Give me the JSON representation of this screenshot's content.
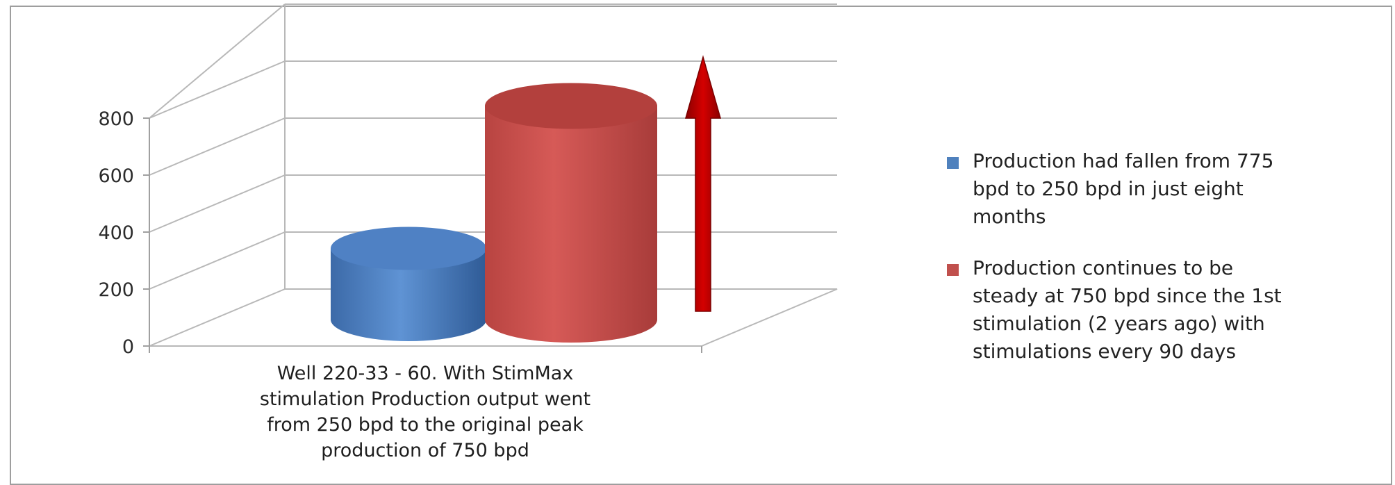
{
  "chart_data": {
    "type": "bar",
    "style": "3d-cylinder",
    "categories": [
      "Well 220-33 - 60. With StimMax stimulation Production output went from 250 bpd to the original peak production of 750 bpd"
    ],
    "category_lines": [
      "Well 220-33 - 60. With StimMax",
      "stimulation Production output went",
      "from 250 bpd to the original peak",
      "production of 750 bpd"
    ],
    "series": [
      {
        "name": "Production had fallen from 775 bpd to 250 bpd in just eight months",
        "legend_lines": [
          "Production had fallen from 775",
          "bpd to 250 bpd in just eight",
          "months"
        ],
        "values": [
          250
        ],
        "color": "#4f81bd"
      },
      {
        "name": "Production continues to be steady at 750 bpd since the 1st stimulation (2 years ago) with stimulations every 90 days",
        "legend_lines": [
          "Production continues to be",
          "steady at 750 bpd since the 1st",
          "stimulation (2 years ago) with",
          "stimulations every 90 days"
        ],
        "values": [
          750
        ],
        "color": "#c0504d"
      }
    ],
    "y_ticks": [
      0,
      200,
      400,
      600,
      800
    ],
    "ylim": [
      0,
      800
    ],
    "grid": true,
    "legend_position": "right",
    "annotation": {
      "kind": "up-arrow",
      "color": "#c00000"
    }
  }
}
